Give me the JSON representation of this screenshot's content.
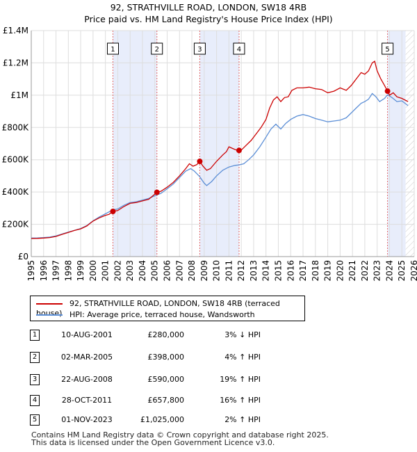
{
  "title_line1": "92, STRATHVILLE ROAD, LONDON, SW18 4RB",
  "title_line2": "Price paid vs. HM Land Registry's House Price Index (HPI)",
  "legend": {
    "property_label": "92, STRATHVILLE ROAD, LONDON, SW18 4RB (terraced house)",
    "hpi_label": "HPI: Average price, terraced house, Wandsworth"
  },
  "transactions": [
    {
      "num": "1",
      "date": "10-AUG-2001",
      "price": "£280,000",
      "hpi": "3% ↓ HPI"
    },
    {
      "num": "2",
      "date": "02-MAR-2005",
      "price": "£398,000",
      "hpi": "4% ↑ HPI"
    },
    {
      "num": "3",
      "date": "22-AUG-2008",
      "price": "£590,000",
      "hpi": "19% ↑ HPI"
    },
    {
      "num": "4",
      "date": "28-OCT-2011",
      "price": "£657,800",
      "hpi": "16% ↑ HPI"
    },
    {
      "num": "5",
      "date": "01-NOV-2023",
      "price": "£1,025,000",
      "hpi": "2% ↑ HPI"
    }
  ],
  "footer_line1": "Contains HM Land Registry data © Crown copyright and database right 2025.",
  "footer_line2": "This data is licensed under the Open Government Licence v3.0.",
  "colors": {
    "property": "#cc0000",
    "hpi": "#5b8ed6",
    "shade": "#e8edfb",
    "grid": "#dddddd",
    "marker_line": "#e06666"
  },
  "chart_data": {
    "type": "line",
    "title": "92, STRATHVILLE ROAD, LONDON, SW18 4RB — Price paid vs. HM Land Registry's House Price Index (HPI)",
    "xlabel": "",
    "ylabel": "",
    "xlim": [
      1995,
      2026
    ],
    "ylim": [
      0,
      1400000
    ],
    "x_ticks": [
      1995,
      1996,
      1997,
      1998,
      1999,
      2000,
      2001,
      2002,
      2003,
      2004,
      2005,
      2006,
      2007,
      2008,
      2009,
      2010,
      2011,
      2012,
      2013,
      2014,
      2015,
      2016,
      2017,
      2018,
      2019,
      2020,
      2021,
      2022,
      2023,
      2024,
      2025,
      2026
    ],
    "y_ticks": [
      {
        "value": 0,
        "label": "£0"
      },
      {
        "value": 200000,
        "label": "£200K"
      },
      {
        "value": 400000,
        "label": "£400K"
      },
      {
        "value": 600000,
        "label": "£600K"
      },
      {
        "value": 800000,
        "label": "£800K"
      },
      {
        "value": 1000000,
        "label": "£1M"
      },
      {
        "value": 1200000,
        "label": "£1.2M"
      },
      {
        "value": 1400000,
        "label": "£1.4M"
      }
    ],
    "grid": true,
    "shaded_periods": [
      [
        2001.61,
        2005.17
      ],
      [
        2008.64,
        2011.82
      ],
      [
        2023.84,
        2025.3
      ]
    ],
    "hatched_from": 2025.3,
    "sales": [
      {
        "label": "1",
        "x": 2001.61,
        "y": 280000
      },
      {
        "label": "2",
        "x": 2005.17,
        "y": 398000
      },
      {
        "label": "3",
        "x": 2008.64,
        "y": 590000
      },
      {
        "label": "4",
        "x": 2011.82,
        "y": 657800
      },
      {
        "label": "5",
        "x": 2023.84,
        "y": 1025000
      }
    ],
    "series": [
      {
        "name": "92, STRATHVILLE ROAD, LONDON, SW18 4RB (terraced house)",
        "points": [
          [
            1995.0,
            112000
          ],
          [
            1995.5,
            113000
          ],
          [
            1996.0,
            115000
          ],
          [
            1996.5,
            118000
          ],
          [
            1997.0,
            125000
          ],
          [
            1997.5,
            138000
          ],
          [
            1998.0,
            150000
          ],
          [
            1998.5,
            162000
          ],
          [
            1999.0,
            172000
          ],
          [
            1999.5,
            190000
          ],
          [
            2000.0,
            220000
          ],
          [
            2000.5,
            240000
          ],
          [
            2001.0,
            255000
          ],
          [
            2001.3,
            262000
          ],
          [
            2001.61,
            280000
          ],
          [
            2002.0,
            285000
          ],
          [
            2002.5,
            310000
          ],
          [
            2003.0,
            330000
          ],
          [
            2003.5,
            335000
          ],
          [
            2004.0,
            345000
          ],
          [
            2004.5,
            355000
          ],
          [
            2005.17,
            398000
          ],
          [
            2005.5,
            405000
          ],
          [
            2006.0,
            430000
          ],
          [
            2006.5,
            460000
          ],
          [
            2007.0,
            500000
          ],
          [
            2007.5,
            545000
          ],
          [
            2007.8,
            575000
          ],
          [
            2008.1,
            560000
          ],
          [
            2008.4,
            570000
          ],
          [
            2008.64,
            590000
          ],
          [
            2008.9,
            560000
          ],
          [
            2009.2,
            535000
          ],
          [
            2009.5,
            545000
          ],
          [
            2010.0,
            590000
          ],
          [
            2010.5,
            630000
          ],
          [
            2010.8,
            650000
          ],
          [
            2011.0,
            680000
          ],
          [
            2011.3,
            670000
          ],
          [
            2011.6,
            660000
          ],
          [
            2011.82,
            657800
          ],
          [
            2012.0,
            660000
          ],
          [
            2012.4,
            690000
          ],
          [
            2012.8,
            720000
          ],
          [
            2013.2,
            760000
          ],
          [
            2013.6,
            800000
          ],
          [
            2014.0,
            850000
          ],
          [
            2014.3,
            920000
          ],
          [
            2014.6,
            970000
          ],
          [
            2014.9,
            990000
          ],
          [
            2015.2,
            960000
          ],
          [
            2015.5,
            985000
          ],
          [
            2015.8,
            990000
          ],
          [
            2016.1,
            1030000
          ],
          [
            2016.5,
            1045000
          ],
          [
            2017.0,
            1045000
          ],
          [
            2017.5,
            1050000
          ],
          [
            2018.0,
            1040000
          ],
          [
            2018.5,
            1035000
          ],
          [
            2019.0,
            1015000
          ],
          [
            2019.5,
            1025000
          ],
          [
            2020.0,
            1045000
          ],
          [
            2020.5,
            1030000
          ],
          [
            2020.9,
            1060000
          ],
          [
            2021.3,
            1100000
          ],
          [
            2021.7,
            1140000
          ],
          [
            2022.0,
            1130000
          ],
          [
            2022.3,
            1150000
          ],
          [
            2022.6,
            1200000
          ],
          [
            2022.8,
            1210000
          ],
          [
            2023.0,
            1150000
          ],
          [
            2023.3,
            1100000
          ],
          [
            2023.6,
            1060000
          ],
          [
            2023.84,
            1025000
          ],
          [
            2024.0,
            1000000
          ],
          [
            2024.3,
            1015000
          ],
          [
            2024.6,
            990000
          ],
          [
            2025.0,
            980000
          ],
          [
            2025.5,
            960000
          ]
        ]
      },
      {
        "name": "HPI: Average price, terraced house, Wandsworth",
        "points": [
          [
            1995.0,
            115000
          ],
          [
            1995.5,
            116000
          ],
          [
            1996.0,
            118000
          ],
          [
            1996.5,
            121000
          ],
          [
            1997.0,
            128000
          ],
          [
            1997.5,
            140000
          ],
          [
            1998.0,
            152000
          ],
          [
            1998.5,
            163000
          ],
          [
            1999.0,
            174000
          ],
          [
            1999.5,
            192000
          ],
          [
            2000.0,
            222000
          ],
          [
            2000.5,
            245000
          ],
          [
            2001.0,
            265000
          ],
          [
            2001.61,
            290000
          ],
          [
            2002.0,
            295000
          ],
          [
            2002.5,
            318000
          ],
          [
            2003.0,
            335000
          ],
          [
            2003.5,
            340000
          ],
          [
            2004.0,
            350000
          ],
          [
            2004.5,
            360000
          ],
          [
            2005.17,
            382000
          ],
          [
            2005.5,
            392000
          ],
          [
            2006.0,
            420000
          ],
          [
            2006.5,
            450000
          ],
          [
            2007.0,
            490000
          ],
          [
            2007.5,
            530000
          ],
          [
            2007.9,
            545000
          ],
          [
            2008.2,
            530000
          ],
          [
            2008.64,
            495000
          ],
          [
            2009.0,
            455000
          ],
          [
            2009.2,
            440000
          ],
          [
            2009.6,
            465000
          ],
          [
            2010.0,
            500000
          ],
          [
            2010.5,
            535000
          ],
          [
            2011.0,
            555000
          ],
          [
            2011.5,
            565000
          ],
          [
            2011.82,
            568000
          ],
          [
            2012.2,
            575000
          ],
          [
            2012.6,
            600000
          ],
          [
            2013.0,
            630000
          ],
          [
            2013.5,
            680000
          ],
          [
            2014.0,
            740000
          ],
          [
            2014.4,
            790000
          ],
          [
            2014.8,
            820000
          ],
          [
            2015.2,
            790000
          ],
          [
            2015.6,
            825000
          ],
          [
            2016.0,
            850000
          ],
          [
            2016.5,
            870000
          ],
          [
            2017.0,
            880000
          ],
          [
            2017.5,
            870000
          ],
          [
            2018.0,
            855000
          ],
          [
            2018.5,
            845000
          ],
          [
            2019.0,
            835000
          ],
          [
            2019.5,
            840000
          ],
          [
            2020.0,
            845000
          ],
          [
            2020.5,
            860000
          ],
          [
            2020.9,
            890000
          ],
          [
            2021.3,
            920000
          ],
          [
            2021.7,
            950000
          ],
          [
            2022.0,
            960000
          ],
          [
            2022.3,
            975000
          ],
          [
            2022.6,
            1010000
          ],
          [
            2022.9,
            990000
          ],
          [
            2023.2,
            960000
          ],
          [
            2023.6,
            980000
          ],
          [
            2023.84,
            1003000
          ],
          [
            2024.2,
            985000
          ],
          [
            2024.6,
            960000
          ],
          [
            2025.0,
            965000
          ],
          [
            2025.5,
            935000
          ]
        ]
      }
    ]
  }
}
